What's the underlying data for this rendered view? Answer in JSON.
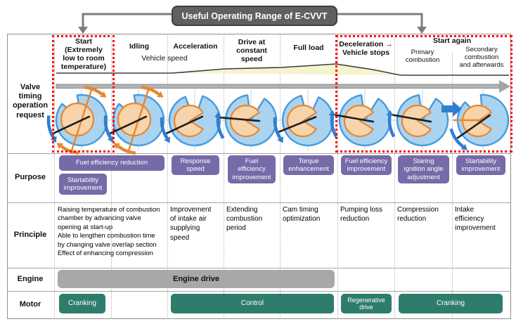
{
  "banner": {
    "title": "Useful Operating Range of E-CVVT"
  },
  "row_labels": {
    "valve": "Valve\ntiming\noperation\nrequest",
    "purpose": "Purpose",
    "principle": "Principle",
    "engine": "Engine",
    "motor": "Motor"
  },
  "header": {
    "start": "Start\n(Extremely\nlow to room\ntemperature)",
    "idling": "Idling",
    "acceleration": "Acceleration",
    "drive_constant": "Drive at\nconstant\nspeed",
    "full_load": "Full load",
    "deceleration": "Deceleration →\nVehicle stops",
    "start_again": "Start again",
    "primary_combustion": "Primary\ncombustion",
    "secondary_combustion": "Secondary\ncombustion\nand afterwards",
    "vehicle_speed": "Vehicle speed"
  },
  "purpose": {
    "fuel_efficiency_reduction": "Fuel efficiency reduction",
    "startability_improvement_start": "Startability\nimprovement",
    "response_speed": "Response\nspeed",
    "fuel_efficiency_improvement_drive": "Fuel\nefficiency\nimprovement",
    "torque_enhancement": "Torque\nenhancement",
    "fuel_efficiency_improvement_decel": "Fuel efficiency\nimprovement",
    "staring_ignition_angle": "Staring\nignition angle\nadjustment",
    "startability_improvement_secondary": "Startability\nimprovement"
  },
  "principle": {
    "start_idling": "Raising temperature of combustion\nchamber by advancing valve\nopening at start-up\nAble to lengthen combustion time\nby changing valve overlap section\nEffect of enhancing compression",
    "acceleration": "Improvement\nof intake air\nsupplying\nspeed",
    "drive_constant": "Extending\ncombustion\nperiod",
    "full_load": "Cam timing\noptimization",
    "deceleration": "Pumping loss\nreduction",
    "primary_combustion": "Compression\nreduction",
    "secondary_combustion": "Intake\nefficiency\nimprovement"
  },
  "engine": {
    "engine_drive": "Engine drive"
  },
  "motor": {
    "cranking_start": "Cranking",
    "control": "Control",
    "regenerative_drive": "Regenerative\ndrive",
    "cranking_again": "Cranking"
  },
  "colors": {
    "purple": "#766aa8",
    "teal": "#2e7d6c",
    "banner_gray": "#606060",
    "engine_gray": "#a8a8a8",
    "red_dotted": "#ff0000",
    "curve_fill": "#f6f3cf",
    "curve_stroke": "#3d3d3d",
    "timeline_gray": "#a8a8a8",
    "dial_blue_fill": "#aad3f2",
    "dial_blue_stroke": "#4a9ddb",
    "dial_orange_fill": "#f7d4ab",
    "dial_orange_stroke": "#e8872f",
    "arrow_blue": "#2f7fd0",
    "needle_black": "#1f1f1f"
  }
}
